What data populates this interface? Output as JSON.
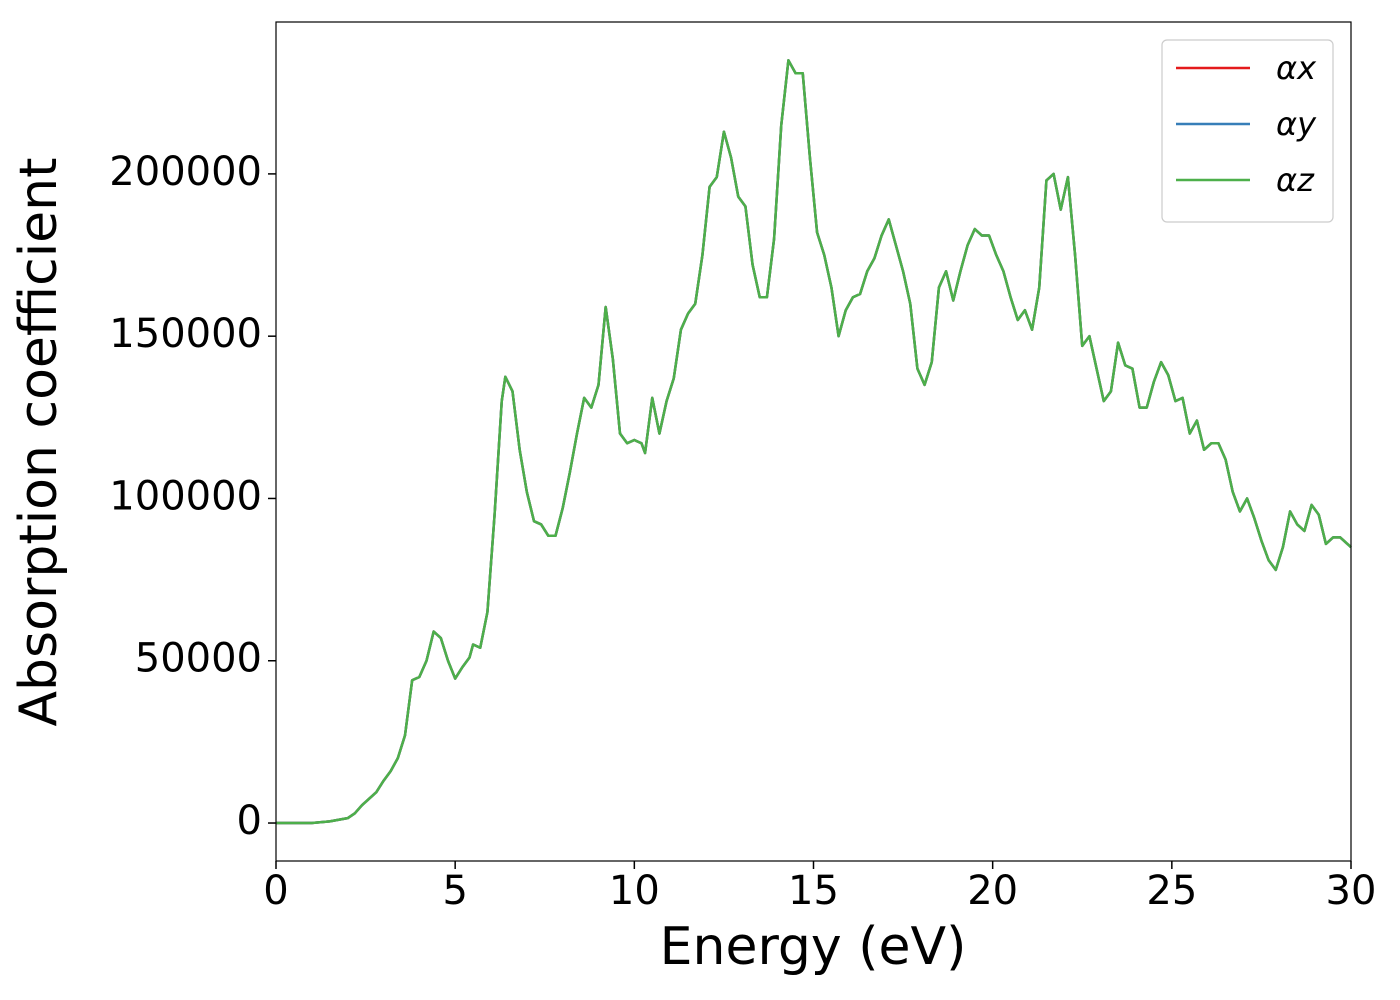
{
  "chart_data": {
    "type": "line",
    "xlabel": "Energy (eV)",
    "ylabel": "Absorption coefficient",
    "x": [
      0,
      1,
      1.5,
      2,
      2.2,
      2.4,
      2.6,
      2.8,
      3.0,
      3.2,
      3.4,
      3.6,
      3.8,
      3.9,
      4.0,
      4.2,
      4.4,
      4.6,
      4.8,
      5.0,
      5.2,
      5.4,
      5.5,
      5.7,
      5.9,
      6.1,
      6.3,
      6.4,
      6.6,
      6.8,
      7.0,
      7.2,
      7.4,
      7.6,
      7.8,
      8.0,
      8.2,
      8.4,
      8.6,
      8.8,
      9.0,
      9.2,
      9.4,
      9.6,
      9.8,
      10.0,
      10.2,
      10.3,
      10.5,
      10.7,
      10.9,
      11.1,
      11.3,
      11.5,
      11.7,
      11.9,
      12.1,
      12.3,
      12.5,
      12.7,
      12.9,
      13.1,
      13.3,
      13.5,
      13.7,
      13.9,
      14.1,
      14.3,
      14.5,
      14.7,
      14.9,
      15.1,
      15.3,
      15.5,
      15.7,
      15.9,
      16.1,
      16.3,
      16.5,
      16.7,
      16.9,
      17.1,
      17.3,
      17.5,
      17.7,
      17.9,
      18.1,
      18.3,
      18.5,
      18.7,
      18.9,
      19.1,
      19.3,
      19.5,
      19.7,
      19.9,
      20.1,
      20.3,
      20.5,
      20.7,
      20.9,
      21.1,
      21.3,
      21.5,
      21.7,
      21.9,
      22.1,
      22.3,
      22.5,
      22.7,
      22.9,
      23.1,
      23.3,
      23.5,
      23.7,
      23.9,
      24.1,
      24.3,
      24.5,
      24.7,
      24.9,
      25.1,
      25.3,
      25.5,
      25.7,
      25.9,
      26.1,
      26.3,
      26.5,
      26.7,
      26.9,
      27.1,
      27.3,
      27.5,
      27.7,
      27.9,
      28.1,
      28.3,
      28.5,
      28.7,
      28.9,
      29.1,
      29.3,
      29.5,
      29.7,
      29.9,
      30
    ],
    "series": [
      {
        "name": "αx",
        "color": "#e41a1c",
        "values": [
          0,
          0,
          500,
          1500,
          3000,
          5500,
          7500,
          9500,
          13000,
          16000,
          20000,
          27000,
          44000,
          44500,
          45000,
          50000,
          59000,
          57000,
          50000,
          44500,
          48000,
          51000,
          55000,
          54000,
          65000,
          95000,
          130000,
          137500,
          133000,
          115000,
          102000,
          93000,
          92000,
          88500,
          88500,
          97000,
          108000,
          120000,
          131000,
          128000,
          135000,
          159000,
          143000,
          120000,
          117000,
          118000,
          117000,
          114000,
          131000,
          120000,
          130000,
          137000,
          152000,
          157000,
          160000,
          175000,
          196000,
          199000,
          213000,
          205000,
          193000,
          190000,
          172000,
          162000,
          162000,
          180000,
          215000,
          235000,
          231000,
          231000,
          205000,
          182000,
          175000,
          165000,
          150000,
          158000,
          162000,
          163000,
          170000,
          174000,
          181000,
          186000,
          178000,
          170000,
          160000,
          140000,
          135000,
          142000,
          165000,
          170000,
          161000,
          170000,
          178000,
          183000,
          181000,
          181000,
          175000,
          170000,
          162000,
          155000,
          158000,
          152000,
          165000,
          198000,
          200000,
          189000,
          199000,
          175000,
          147000,
          150000,
          140000,
          130000,
          133000,
          148000,
          141000,
          140000,
          128000,
          128000,
          136000,
          142000,
          138000,
          130000,
          131000,
          120000,
          124000,
          115000,
          117000,
          117000,
          112000,
          102000,
          96000,
          100000,
          94000,
          87000,
          81000,
          78000,
          85000,
          96000,
          92000,
          90000,
          98000,
          95000,
          86000,
          88000,
          88000,
          86000,
          85000
        ]
      },
      {
        "name": "αy",
        "color": "#377eb8",
        "values": [
          0,
          0,
          500,
          1500,
          3000,
          5500,
          7500,
          9500,
          13000,
          16000,
          20000,
          27000,
          44000,
          44500,
          45000,
          50000,
          59000,
          57000,
          50000,
          44500,
          48000,
          51000,
          55000,
          54000,
          65000,
          95000,
          130000,
          137500,
          133000,
          115000,
          102000,
          93000,
          92000,
          88500,
          88500,
          97000,
          108000,
          120000,
          131000,
          128000,
          135000,
          159000,
          143000,
          120000,
          117000,
          118000,
          117000,
          114000,
          131000,
          120000,
          130000,
          137000,
          152000,
          157000,
          160000,
          175000,
          196000,
          199000,
          213000,
          205000,
          193000,
          190000,
          172000,
          162000,
          162000,
          180000,
          215000,
          235000,
          231000,
          231000,
          205000,
          182000,
          175000,
          165000,
          150000,
          158000,
          162000,
          163000,
          170000,
          174000,
          181000,
          186000,
          178000,
          170000,
          160000,
          140000,
          135000,
          142000,
          165000,
          170000,
          161000,
          170000,
          178000,
          183000,
          181000,
          181000,
          175000,
          170000,
          162000,
          155000,
          158000,
          152000,
          165000,
          198000,
          200000,
          189000,
          199000,
          175000,
          147000,
          150000,
          140000,
          130000,
          133000,
          148000,
          141000,
          140000,
          128000,
          128000,
          136000,
          142000,
          138000,
          130000,
          131000,
          120000,
          124000,
          115000,
          117000,
          117000,
          112000,
          102000,
          96000,
          100000,
          94000,
          87000,
          81000,
          78000,
          85000,
          96000,
          92000,
          90000,
          98000,
          95000,
          86000,
          88000,
          88000,
          86000,
          85000
        ]
      },
      {
        "name": "αz",
        "color": "#4daf4a",
        "values": [
          0,
          0,
          500,
          1500,
          3000,
          5500,
          7500,
          9500,
          13000,
          16000,
          20000,
          27000,
          44000,
          44500,
          45000,
          50000,
          59000,
          57000,
          50000,
          44500,
          48000,
          51000,
          55000,
          54000,
          65000,
          95000,
          130000,
          137500,
          133000,
          115000,
          102000,
          93000,
          92000,
          88500,
          88500,
          97000,
          108000,
          120000,
          131000,
          128000,
          135000,
          159000,
          143000,
          120000,
          117000,
          118000,
          117000,
          114000,
          131000,
          120000,
          130000,
          137000,
          152000,
          157000,
          160000,
          175000,
          196000,
          199000,
          213000,
          205000,
          193000,
          190000,
          172000,
          162000,
          162000,
          180000,
          215000,
          235000,
          231000,
          231000,
          205000,
          182000,
          175000,
          165000,
          150000,
          158000,
          162000,
          163000,
          170000,
          174000,
          181000,
          186000,
          178000,
          170000,
          160000,
          140000,
          135000,
          142000,
          165000,
          170000,
          161000,
          170000,
          178000,
          183000,
          181000,
          181000,
          175000,
          170000,
          162000,
          155000,
          158000,
          152000,
          165000,
          198000,
          200000,
          189000,
          199000,
          175000,
          147000,
          150000,
          140000,
          130000,
          133000,
          148000,
          141000,
          140000,
          128000,
          128000,
          136000,
          142000,
          138000,
          130000,
          131000,
          120000,
          124000,
          115000,
          117000,
          117000,
          112000,
          102000,
          96000,
          100000,
          94000,
          87000,
          81000,
          78000,
          85000,
          96000,
          92000,
          90000,
          98000,
          95000,
          86000,
          88000,
          88000,
          86000,
          85000
        ]
      }
    ],
    "xlim": [
      0,
      30
    ],
    "xticks": [
      0,
      5,
      10,
      15,
      20,
      25,
      30
    ],
    "ylim": [
      -11700,
      246800
    ],
    "yticks": [
      0,
      50000,
      100000,
      150000,
      200000
    ],
    "grid": false,
    "legend": "upper right"
  }
}
